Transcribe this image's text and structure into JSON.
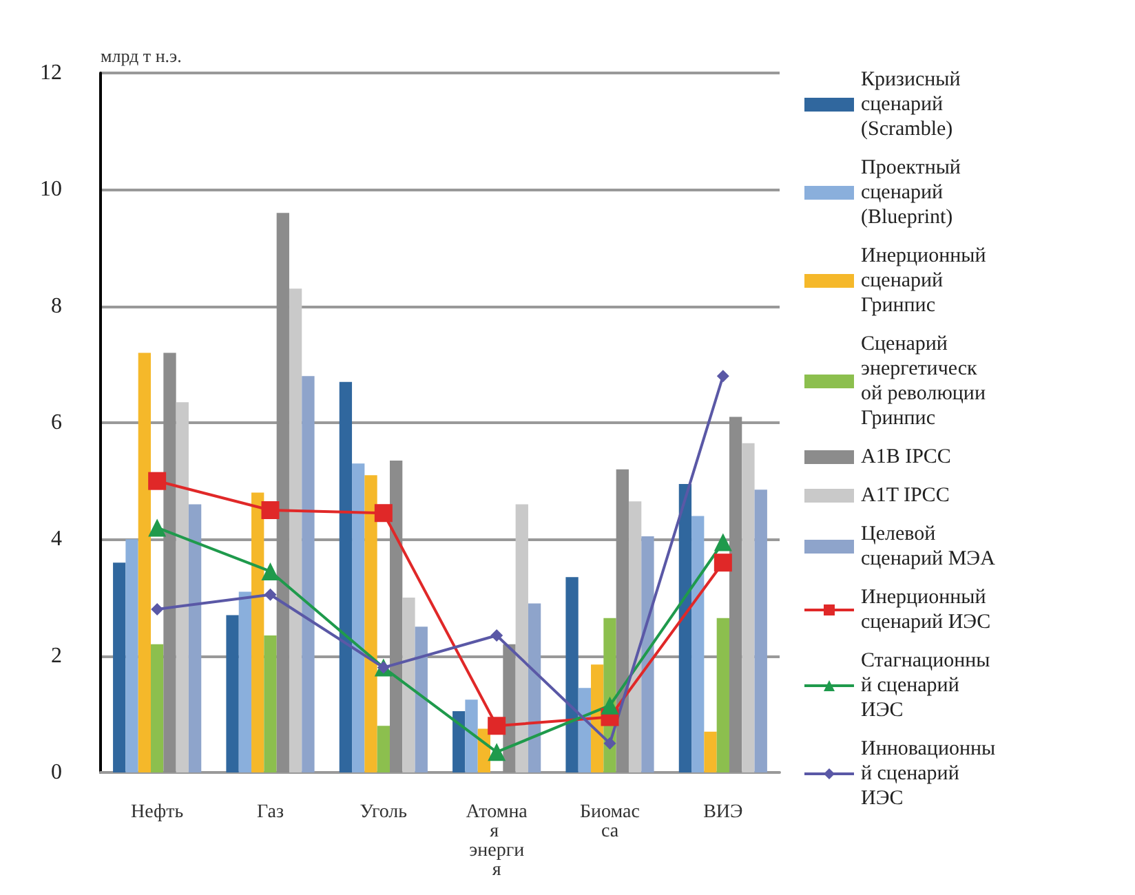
{
  "chart_data": {
    "type": "bar",
    "ylabel": "млрд т н.э.",
    "categories": [
      "Нефть",
      "Газ",
      "Уголь",
      "Атомная энергия",
      "Биомасса",
      "ВИЭ"
    ],
    "series": [
      {
        "name": "Кризисный сценарий (Scramble)",
        "color": "#30679e",
        "values": [
          3.6,
          2.7,
          6.7,
          1.05,
          3.35,
          4.95
        ]
      },
      {
        "name": "Проектный сценарий (Blueprint)",
        "color": "#8aafdc",
        "values": [
          4.0,
          3.1,
          5.3,
          1.25,
          1.45,
          4.4
        ]
      },
      {
        "name": "Инерционный сценарий Гринпис",
        "color": "#f5b82a",
        "values": [
          7.2,
          4.8,
          5.1,
          0.75,
          1.85,
          0.7
        ]
      },
      {
        "name": "Сценарий энергетической революции Гринпис",
        "color": "#8cbf4e",
        "values": [
          2.2,
          2.35,
          0.8,
          null,
          2.65,
          2.65
        ]
      },
      {
        "name": "A1B IPCC",
        "color": "#8c8c8c",
        "values": [
          7.2,
          9.6,
          5.35,
          2.2,
          5.2,
          6.1
        ]
      },
      {
        "name": "A1T IPCC",
        "color": "#c9c9c9",
        "values": [
          6.35,
          8.3,
          3.0,
          4.6,
          4.65,
          5.65
        ]
      },
      {
        "name": "Целевой сценарий МЭА",
        "color": "#8ea4cb",
        "values": [
          4.6,
          6.8,
          2.5,
          2.9,
          4.05,
          4.85
        ]
      },
      {
        "name": "Инерционный сценарий ИЭС",
        "type": "line",
        "marker": "square",
        "color": "#e02828",
        "values": [
          5.0,
          4.5,
          4.45,
          0.8,
          0.95,
          3.6
        ]
      },
      {
        "name": "Стагнационный сценарий ИЭС",
        "type": "line",
        "marker": "triangle",
        "color": "#1f9a4c",
        "values": [
          4.2,
          3.45,
          1.8,
          0.35,
          1.15,
          3.95
        ]
      },
      {
        "name": "Инновационный сценарий ИЭС",
        "type": "line",
        "marker": "diamond",
        "color": "#5a58a6",
        "values": [
          2.8,
          3.05,
          1.8,
          2.35,
          0.5,
          6.8
        ]
      }
    ],
    "ylim": [
      0,
      12
    ],
    "yticks": [
      0,
      2,
      4,
      6,
      8,
      10,
      12
    ],
    "grid": "y",
    "legend": "right",
    "line_style": "solid"
  }
}
